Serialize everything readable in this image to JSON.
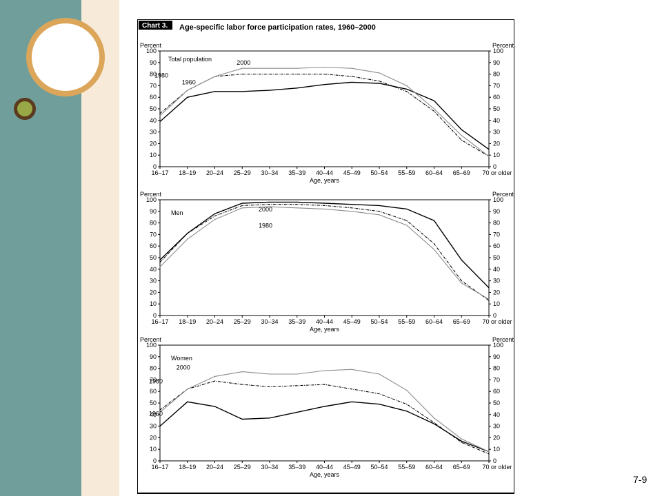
{
  "slide_number": "7-9",
  "chart_data": {
    "chart_label": "Chart 3.",
    "title": "Age-specific labor force participation rates, 1960–2000",
    "type": "line",
    "x_categories": [
      "16–17",
      "18–19",
      "20–24",
      "25–29",
      "30–34",
      "35–39",
      "40–44",
      "45–49",
      "50–54",
      "55–59",
      "60–64",
      "65–69",
      "70 or older"
    ],
    "xlabel": "Age, years",
    "ylabel_left": "Percent",
    "ylabel_right": "Percent",
    "ylim": [
      0,
      100
    ],
    "y_ticks": [
      0,
      10,
      20,
      30,
      40,
      50,
      60,
      70,
      80,
      90,
      100
    ],
    "grid": false,
    "series_styles": {
      "1960": {
        "color": "#000000",
        "dash": "solid"
      },
      "1980": {
        "color": "#000000",
        "dash": "dashdot"
      },
      "2000": {
        "color": "#8a8a8a",
        "dash": "solid"
      }
    },
    "panels": [
      {
        "title": "Total population",
        "series": [
          {
            "name": "1960",
            "values": [
              39,
              60,
              65,
              65,
              66,
              68,
              71,
              73,
              72,
              67,
              57,
              32,
              15
            ]
          },
          {
            "name": "1980",
            "values": [
              46,
              66,
              78,
              80,
              80,
              80,
              80,
              78,
              74,
              65,
              48,
              23,
              9
            ]
          },
          {
            "name": "2000",
            "values": [
              44,
              66,
              78,
              85,
              85,
              85,
              86,
              85,
              81,
              70,
              50,
              27,
              9
            ]
          }
        ]
      },
      {
        "title": "Men",
        "series": [
          {
            "name": "1960",
            "values": [
              48,
              71,
              88,
              97,
              98,
              98,
              97,
              96,
              95,
              92,
              82,
              48,
              24
            ]
          },
          {
            "name": "1980",
            "values": [
              46,
              71,
              86,
              95,
              96,
              96,
              95,
              93,
              90,
              82,
              62,
              30,
              13
            ]
          },
          {
            "name": "2000",
            "values": [
              42,
              66,
              83,
              93,
              94,
              93,
              92,
              90,
              87,
              78,
              57,
              28,
              14
            ]
          }
        ]
      },
      {
        "title": "Women",
        "series": [
          {
            "name": "1960",
            "values": [
              30,
              51,
              47,
              36,
              37,
              42,
              47,
              51,
              49,
              43,
              32,
              17,
              8
            ]
          },
          {
            "name": "1980",
            "values": [
              44,
              62,
              69,
              66,
              64,
              65,
              66,
              62,
              58,
              49,
              33,
              16,
              6
            ]
          },
          {
            "name": "2000",
            "values": [
              42,
              62,
              73,
              77,
              75,
              75,
              78,
              79,
              75,
              61,
              37,
              19,
              8
            ]
          }
        ]
      }
    ]
  }
}
